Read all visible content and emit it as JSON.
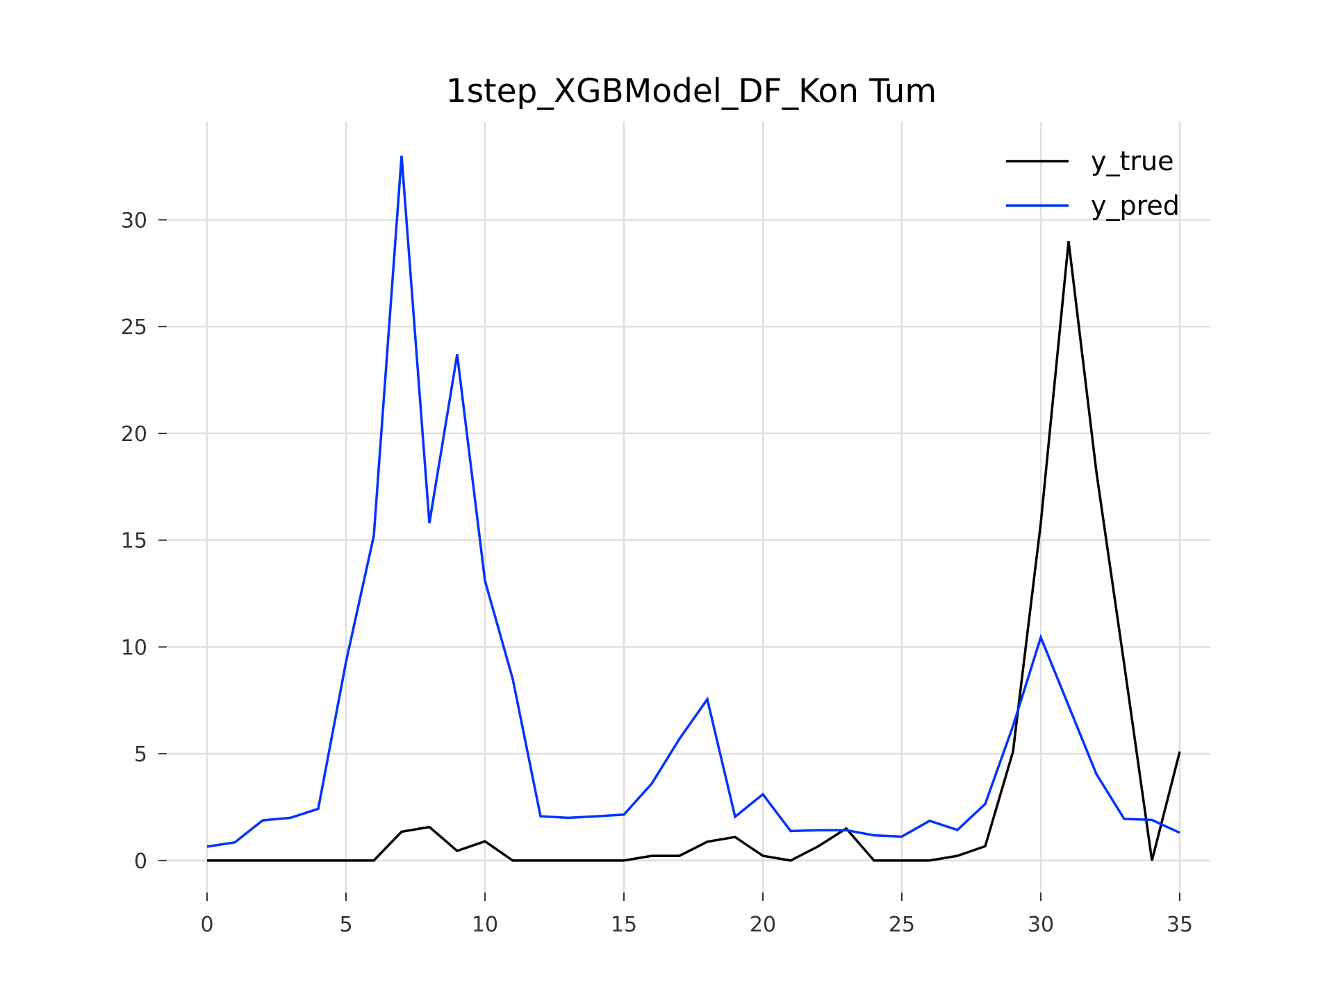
{
  "chart_data": {
    "type": "line",
    "title": "1step_XGBModel_DF_Kon Tum",
    "xlabel": "",
    "ylabel": "",
    "xlim": [
      -1.4,
      36.1
    ],
    "ylim": [
      -1.5,
      34.6
    ],
    "xticks": [
      0,
      5,
      10,
      15,
      20,
      25,
      30,
      35
    ],
    "yticks": [
      0,
      5,
      10,
      15,
      20,
      25,
      30
    ],
    "grid": true,
    "legend_position": "top-right",
    "x": [
      0,
      1,
      2,
      3,
      4,
      5,
      6,
      7,
      8,
      9,
      10,
      11,
      12,
      13,
      14,
      15,
      16,
      17,
      18,
      19,
      20,
      21,
      22,
      23,
      24,
      25,
      26,
      27,
      28,
      29,
      30,
      31,
      32,
      33,
      34,
      35
    ],
    "series": [
      {
        "name": "y_true",
        "color": "#000000",
        "values": [
          0,
          0,
          0,
          0,
          0,
          0,
          0,
          1.35,
          1.57,
          0.45,
          0.9,
          0,
          0,
          0,
          0,
          0,
          0.22,
          0.22,
          0.88,
          1.1,
          0.22,
          0,
          0.67,
          1.5,
          0,
          0,
          0,
          0.22,
          0.67,
          5.1,
          15.8,
          29,
          18.2,
          9.2,
          0,
          5.1
        ]
      },
      {
        "name": "y_pred",
        "color": "#0033ff",
        "values": [
          0.65,
          0.85,
          1.88,
          2.0,
          2.42,
          9.3,
          15.2,
          33.0,
          15.8,
          23.7,
          13.1,
          8.5,
          2.07,
          2.0,
          2.07,
          2.15,
          3.6,
          5.7,
          7.55,
          2.05,
          3.1,
          1.38,
          1.42,
          1.42,
          1.18,
          1.12,
          1.86,
          1.43,
          2.65,
          6.3,
          10.45,
          7.25,
          4.05,
          1.95,
          1.9,
          1.3
        ]
      }
    ]
  }
}
